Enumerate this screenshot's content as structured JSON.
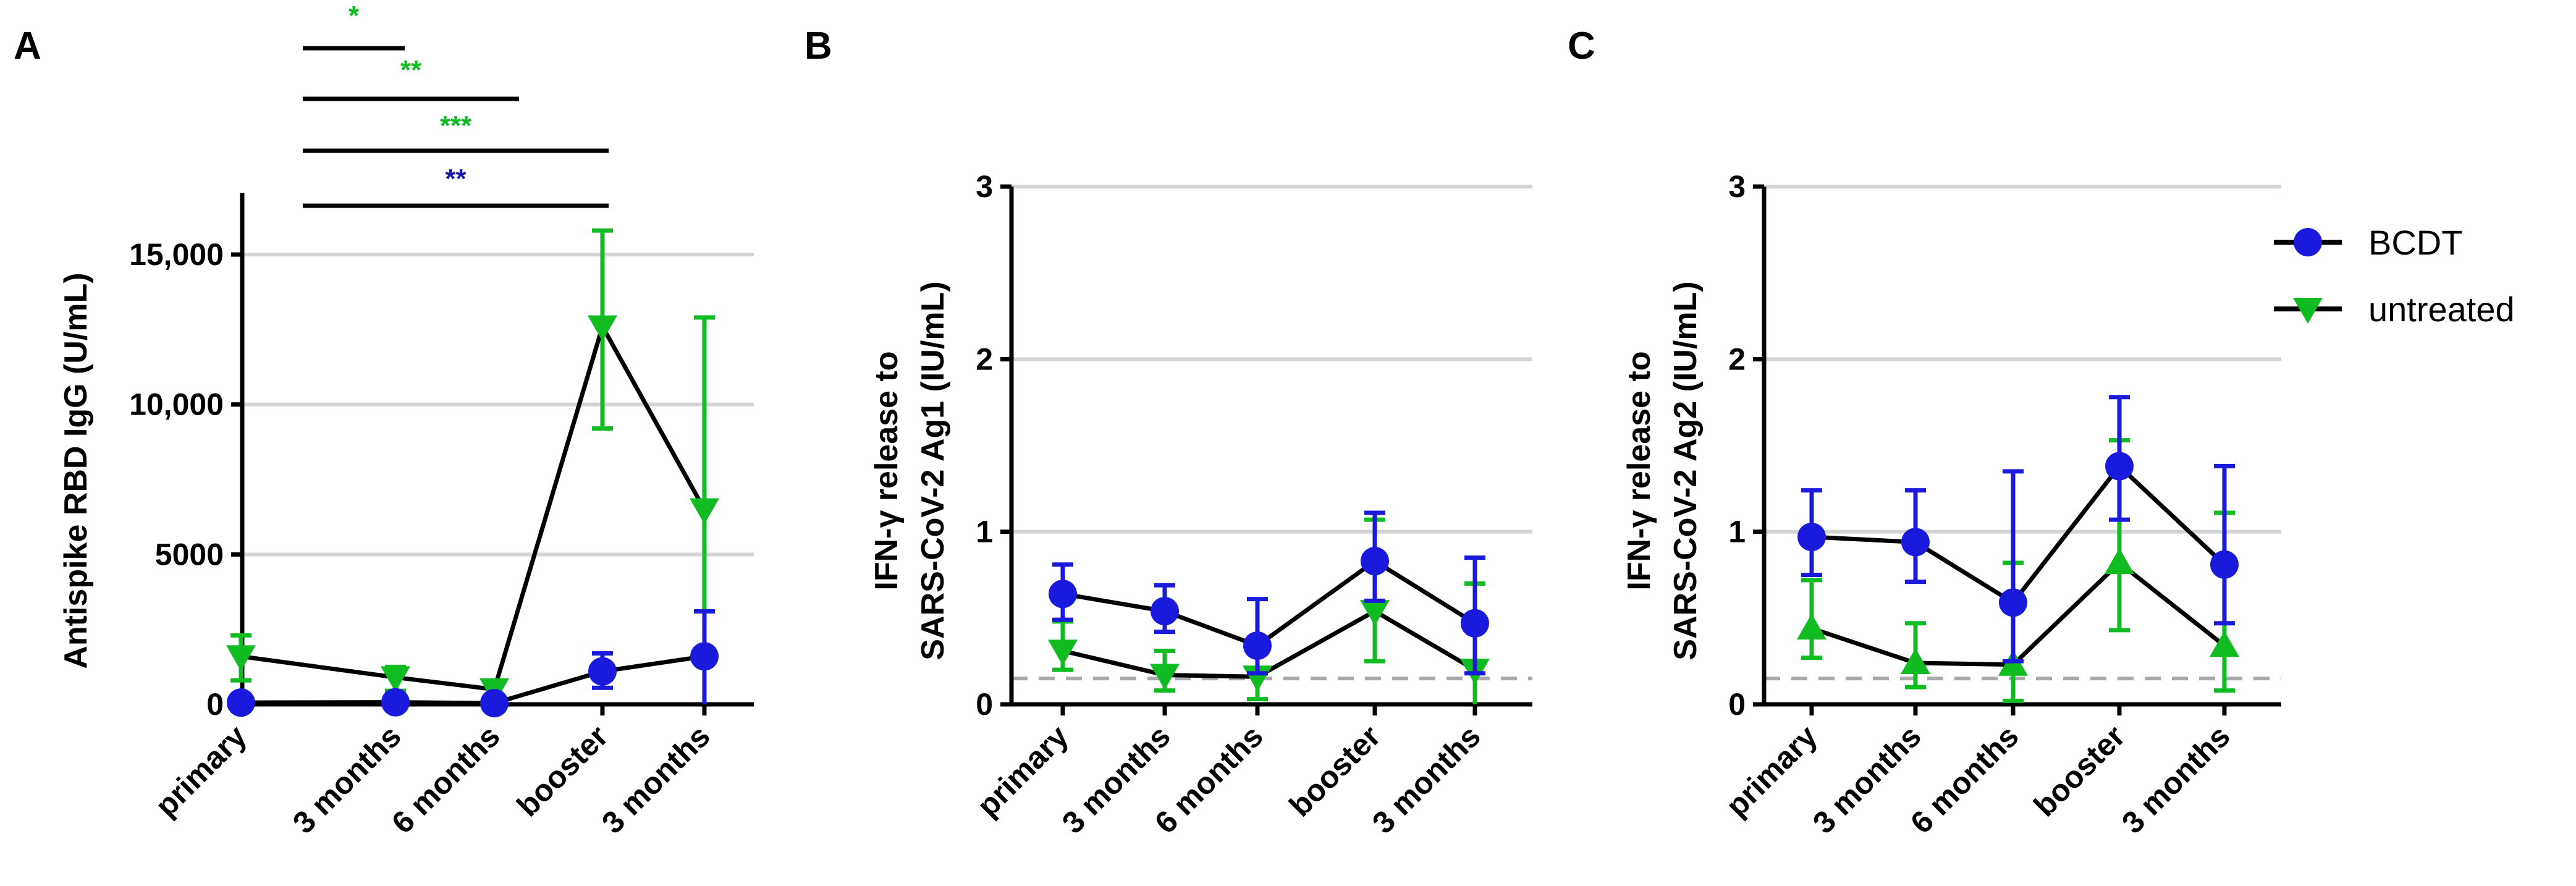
{
  "colors": {
    "bcdt": "#1a1adc",
    "untreated": "#11bb22",
    "line": "#000000",
    "grid": "#d3d3d3",
    "threshold": "#a9a9a9",
    "sig_green": "#11bb22",
    "sig_blue": "#1a1aa8"
  },
  "legend": {
    "items": [
      {
        "label": "BCDT",
        "marker": "circle",
        "color": "#1a1adc"
      },
      {
        "label": "untreated",
        "marker": "triangle-down",
        "color": "#11bb22"
      }
    ]
  },
  "chart_data": [
    {
      "panel": "A",
      "type": "line",
      "title": "",
      "ylabel": "Antispike RBD IgG (U/mL)",
      "categories": [
        "primary",
        "3 months",
        "6 months",
        "booster",
        "3 months"
      ],
      "ylim": [
        0,
        17000
      ],
      "yticks": [
        0,
        5000,
        10000,
        15000
      ],
      "ytick_labels": [
        "0",
        "5000",
        "10,000",
        "15,000"
      ],
      "grid": [
        5000,
        10000,
        15000
      ],
      "threshold": null,
      "series": [
        {
          "name": "BCDT",
          "marker": "circle",
          "values": [
            60,
            70,
            40,
            1100,
            1600
          ],
          "err_low": [
            20,
            20,
            10,
            550,
            0
          ],
          "err_high": [
            120,
            130,
            80,
            1700,
            3100
          ]
        },
        {
          "name": "untreated",
          "marker": "triangle-down",
          "values": [
            1600,
            900,
            500,
            12600,
            6500
          ],
          "err_low": [
            800,
            450,
            250,
            9200,
            0
          ],
          "err_high": [
            2300,
            1250,
            700,
            15800,
            12900
          ]
        }
      ],
      "significance": [
        {
          "label": "*",
          "from": 0,
          "to": 1,
          "color": "green"
        },
        {
          "label": "**",
          "from": 0,
          "to": 2,
          "color": "green"
        },
        {
          "label": "***",
          "from": 0,
          "to": 3,
          "color": "green"
        },
        {
          "label": "**",
          "from": 0,
          "to": 3,
          "color": "blue"
        }
      ]
    },
    {
      "panel": "B",
      "type": "line",
      "title": "",
      "ylabel": "IFN-γ release to SARS-CoV-2 Ag1 (IU/mL)",
      "ylabel_lines": [
        "IFN-γ release to",
        "SARS-CoV-2 Ag1 (IU/mL)"
      ],
      "categories": [
        "primary",
        "3 months",
        "6 months",
        "booster",
        "3 months"
      ],
      "ylim": [
        0,
        3
      ],
      "yticks": [
        0,
        1,
        2,
        3
      ],
      "ytick_labels": [
        "0",
        "1",
        "2",
        "3"
      ],
      "grid": [
        1,
        2,
        3
      ],
      "threshold": 0.15,
      "series": [
        {
          "name": "BCDT",
          "marker": "circle",
          "values": [
            0.64,
            0.54,
            0.34,
            0.83,
            0.47
          ],
          "err_low": [
            0.49,
            0.42,
            0.18,
            0.6,
            0.18
          ],
          "err_high": [
            0.81,
            0.69,
            0.61,
            1.11,
            0.85
          ]
        },
        {
          "name": "untreated",
          "marker": "triangle-down",
          "values": [
            0.31,
            0.17,
            0.16,
            0.54,
            0.2
          ],
          "err_low": [
            0.2,
            0.08,
            0.03,
            0.25,
            0.0
          ],
          "err_high": [
            0.48,
            0.31,
            0.35,
            1.07,
            0.7
          ]
        }
      ]
    },
    {
      "panel": "C",
      "type": "line",
      "title": "",
      "ylabel": "IFN-γ release to SARS-CoV-2 Ag2 (IU/mL)",
      "ylabel_lines": [
        "IFN-γ release to",
        "SARS-CoV-2 Ag2 (IU/mL)"
      ],
      "categories": [
        "primary",
        "3 months",
        "6 months",
        "booster",
        "3 months"
      ],
      "ylim": [
        0,
        3
      ],
      "yticks": [
        0,
        1,
        2,
        3
      ],
      "ytick_labels": [
        "0",
        "1",
        "2",
        "3"
      ],
      "grid": [
        1,
        2,
        3
      ],
      "threshold": 0.15,
      "series": [
        {
          "name": "BCDT",
          "marker": "circle",
          "values": [
            0.97,
            0.94,
            0.59,
            1.38,
            0.81
          ],
          "err_low": [
            0.75,
            0.71,
            0.25,
            1.07,
            0.47
          ],
          "err_high": [
            1.24,
            1.24,
            1.35,
            1.78,
            1.38
          ]
        },
        {
          "name": "untreated",
          "marker": "triangle-up",
          "values": [
            0.44,
            0.24,
            0.23,
            0.82,
            0.34
          ],
          "err_low": [
            0.27,
            0.1,
            0.02,
            0.43,
            0.08
          ],
          "err_high": [
            0.72,
            0.47,
            0.82,
            1.53,
            1.11
          ]
        }
      ]
    }
  ]
}
